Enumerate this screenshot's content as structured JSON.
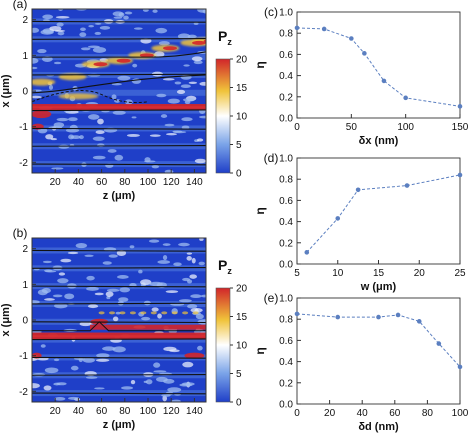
{
  "chart_data": [
    {
      "type": "heatmap",
      "panel_label": "(a)",
      "xlabel": "z (μm)",
      "ylabel": "x (μm)",
      "xticks": [
        "20",
        "40",
        "60",
        "80",
        "100",
        "120",
        "140"
      ],
      "yticks": [
        "2",
        "1",
        "0",
        "-1",
        "-2"
      ],
      "xlim": [
        0,
        150
      ],
      "ylim": [
        -2.3,
        2.3
      ],
      "colorbar": {
        "title": "P",
        "title_sub": "z",
        "ticks": [
          "20",
          "15",
          "10",
          "5",
          "0"
        ],
        "range": [
          0,
          20
        ]
      },
      "waveguide_x": [
        1.95,
        1.45,
        0.95,
        0.45,
        -0.05,
        -0.55,
        -1.05,
        -1.55,
        -2.05
      ],
      "cores_x": [
        -0.45,
        -0.3
      ],
      "colormap": [
        "#1f3fc8",
        "#ffffff",
        "#f0c33a",
        "#d1252a"
      ]
    },
    {
      "type": "heatmap",
      "panel_label": "(b)",
      "xlabel": "z (μm)",
      "ylabel": "x (μm)",
      "xticks": [
        "20",
        "40",
        "60",
        "80",
        "100",
        "120",
        "140"
      ],
      "yticks": [
        "2",
        "1",
        "0",
        "-1",
        "-2"
      ],
      "xlim": [
        0,
        150
      ],
      "ylim": [
        -2.3,
        2.3
      ],
      "colorbar": {
        "title": "P",
        "title_sub": "z",
        "ticks": [
          "20",
          "15",
          "10",
          "5",
          "0"
        ],
        "range": [
          0,
          20
        ]
      },
      "waveguide_x": [
        1.95,
        1.45,
        0.95,
        0.45,
        -0.05,
        -0.55,
        -1.05,
        -1.55,
        -2.05
      ],
      "cores_x": [
        -0.45,
        -0.3
      ],
      "colormap": [
        "#1f3fc8",
        "#ffffff",
        "#f0c33a",
        "#d1252a"
      ]
    },
    {
      "type": "line",
      "panel_label": "(c)",
      "xlabel": "δx (nm)",
      "ylabel": "η",
      "x": [
        0,
        25,
        50,
        62,
        80,
        100,
        150
      ],
      "y": [
        0.85,
        0.84,
        0.75,
        0.61,
        0.35,
        0.19,
        0.11
      ],
      "xticks": [
        "0",
        "50",
        "100",
        "150"
      ],
      "yticks": [
        "0.0",
        "0.2",
        "0.4",
        "0.6",
        "0.8",
        "1.0"
      ],
      "xlim": [
        0,
        150
      ],
      "ylim": [
        0,
        1
      ],
      "color": "#5b7fc0"
    },
    {
      "type": "line",
      "panel_label": "(d)",
      "xlabel": "w (μm)",
      "ylabel": "η",
      "x": [
        6.2,
        10,
        12.5,
        18.5,
        25
      ],
      "y": [
        0.11,
        0.43,
        0.7,
        0.74,
        0.84
      ],
      "xticks": [
        "5",
        "10",
        "15",
        "20",
        "25"
      ],
      "yticks": [
        "0.0",
        "0.2",
        "0.4",
        "0.6",
        "0.8",
        "1.0"
      ],
      "xlim": [
        5,
        25
      ],
      "ylim": [
        0,
        1
      ],
      "color": "#5b7fc0"
    },
    {
      "type": "line",
      "panel_label": "(e)",
      "xlabel": "δd (nm)",
      "ylabel": "η",
      "x": [
        0,
        25,
        50,
        62,
        75,
        87,
        100
      ],
      "y": [
        0.85,
        0.82,
        0.82,
        0.84,
        0.78,
        0.57,
        0.35
      ],
      "xticks": [
        "0",
        "20",
        "40",
        "60",
        "80",
        "100"
      ],
      "yticks": [
        "0.0",
        "0.2",
        "0.4",
        "0.6",
        "0.8",
        "1.0"
      ],
      "xlim": [
        0,
        100
      ],
      "ylim": [
        0,
        1
      ],
      "color": "#5b7fc0"
    }
  ]
}
